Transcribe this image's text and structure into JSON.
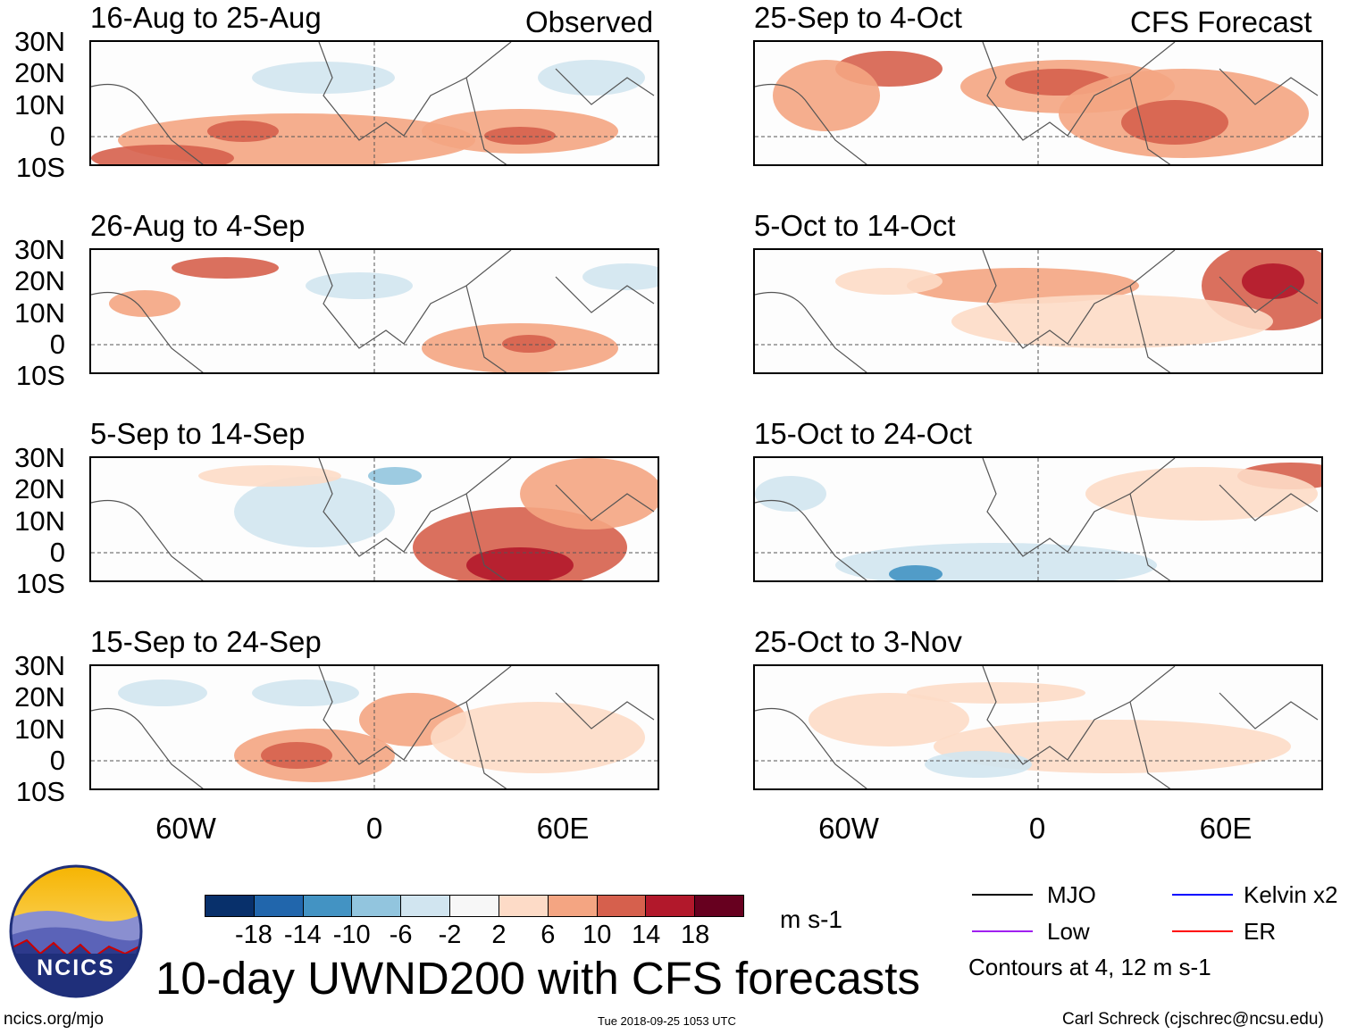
{
  "headers": {
    "left": "Observed",
    "right": "CFS Forecast"
  },
  "panels": [
    {
      "title": "16-Aug to 25-Aug",
      "column": "left"
    },
    {
      "title": "26-Aug to 4-Sep",
      "column": "left"
    },
    {
      "title": "5-Sep to 14-Sep",
      "column": "left"
    },
    {
      "title": "15-Sep to 24-Sep",
      "column": "left"
    },
    {
      "title": "25-Sep to 4-Oct",
      "column": "right"
    },
    {
      "title": "5-Oct to 14-Oct",
      "column": "right"
    },
    {
      "title": "15-Oct to 24-Oct",
      "column": "right"
    },
    {
      "title": "25-Oct to 3-Nov",
      "column": "right"
    }
  ],
  "lat_labels": [
    "30N",
    "20N",
    "10N",
    "0",
    "10S"
  ],
  "lon_labels": [
    "60W",
    "0",
    "60E"
  ],
  "colorbar": {
    "colors": [
      "#08306b",
      "#2166ac",
      "#4393c3",
      "#92c5de",
      "#d1e5f0",
      "#f7f7f7",
      "#fddbc7",
      "#f4a582",
      "#d6604d",
      "#b2182b",
      "#67001f"
    ],
    "labels": [
      "-18",
      "-14",
      "-10",
      "-6",
      "-2",
      "2",
      "6",
      "10",
      "14",
      "18"
    ],
    "units": "m s-1"
  },
  "legend": {
    "items": [
      {
        "label": "MJO",
        "color": "#000000"
      },
      {
        "label": "Kelvin x2",
        "color": "#0000ff"
      },
      {
        "label": "Low",
        "color": "#a020f0"
      },
      {
        "label": "ER",
        "color": "#ff0000"
      }
    ],
    "note": "Contours at 4, 12 m s-1"
  },
  "title": "10-day UWND200 with CFS forecasts",
  "logo_text": "NCICS",
  "footer": {
    "url": "ncics.org/mjo",
    "timestamp": "Tue 2018-09-25 1053 UTC",
    "credit": "Carl Schreck (cjschrec@ncsu.edu)"
  }
}
